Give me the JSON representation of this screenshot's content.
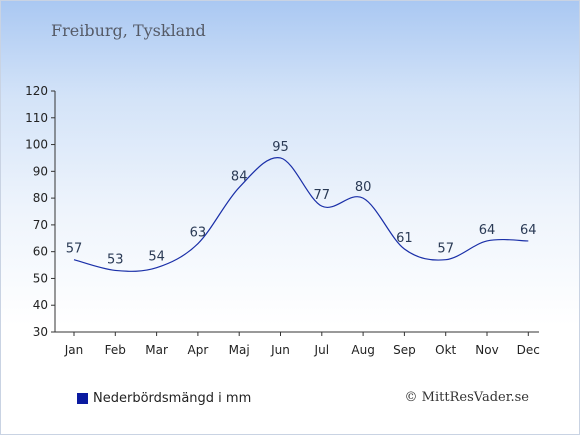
{
  "title": "Freiburg, Tyskland",
  "legend_label": "Nederbördsmängd i mm",
  "copyright": "© MittResVader.se",
  "colors": {
    "line": "#1a2fa8",
    "legend_swatch": "#0a1aa0",
    "axis": "#333333"
  },
  "chart_data": {
    "type": "line",
    "categories": [
      "Jan",
      "Feb",
      "Mar",
      "Apr",
      "Maj",
      "Jun",
      "Jul",
      "Aug",
      "Sep",
      "Okt",
      "Nov",
      "Dec"
    ],
    "series": [
      {
        "name": "Nederbördsmängd i mm",
        "values": [
          57,
          53,
          54,
          63,
          84,
          95,
          77,
          80,
          61,
          57,
          64,
          64
        ]
      }
    ],
    "ylim": [
      30,
      120
    ],
    "yticks": [
      30,
      40,
      50,
      60,
      70,
      80,
      90,
      100,
      110,
      120
    ],
    "grid": false,
    "legend_position": "bottom-left"
  }
}
